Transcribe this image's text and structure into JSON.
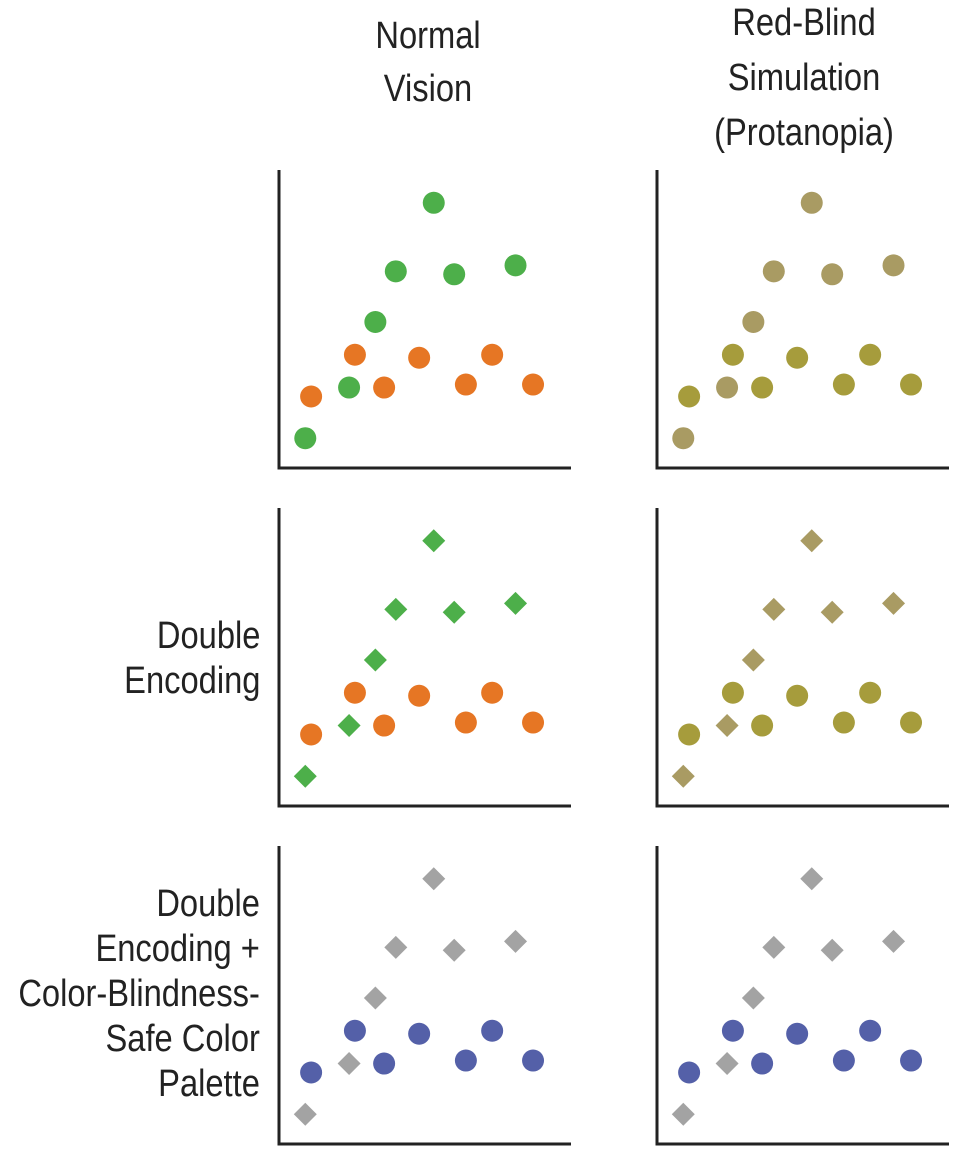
{
  "columns": [
    {
      "title_lines": [
        "Normal",
        "Vision"
      ]
    },
    {
      "title_lines": [
        "Red-Blind",
        "Simulation",
        "(Protanopia)"
      ]
    }
  ],
  "rows": [
    {
      "title_lines": []
    },
    {
      "title_lines": [
        "Double",
        "Encoding"
      ]
    },
    {
      "title_lines": [
        "Double",
        "Encoding +",
        "Color-Blindness-",
        "Safe Color",
        "Palette"
      ]
    }
  ],
  "chart_data": {
    "type": "scatter",
    "note_grid": "3 rows x 2 columns of small multiples; identical point positions in every panel; no tick labels",
    "xlim": [
      0,
      10
    ],
    "ylim": [
      0,
      10
    ],
    "grid": false,
    "series": [
      {
        "group": "A",
        "points": [
          [
            0.9,
            1.0
          ],
          [
            2.4,
            2.7
          ],
          [
            3.3,
            4.9
          ],
          [
            4.0,
            6.6
          ],
          [
            5.3,
            8.9
          ],
          [
            6.0,
            6.5
          ],
          [
            8.1,
            6.8
          ]
        ]
      },
      {
        "group": "B",
        "points": [
          [
            1.1,
            2.4
          ],
          [
            2.6,
            3.8
          ],
          [
            3.6,
            2.7
          ],
          [
            4.8,
            3.7
          ],
          [
            6.4,
            2.8
          ],
          [
            7.3,
            3.8
          ],
          [
            8.7,
            2.8
          ]
        ]
      }
    ],
    "panels": [
      {
        "row": 0,
        "col": 0,
        "A": {
          "shape": "circle",
          "color": "#4daf4a"
        },
        "B": {
          "shape": "circle",
          "color": "#e67624"
        }
      },
      {
        "row": 0,
        "col": 1,
        "A": {
          "shape": "circle",
          "color": "#a99b63"
        },
        "B": {
          "shape": "circle",
          "color": "#a69c3c"
        }
      },
      {
        "row": 1,
        "col": 0,
        "A": {
          "shape": "diamond",
          "color": "#4daf4a"
        },
        "B": {
          "shape": "circle",
          "color": "#e67624"
        }
      },
      {
        "row": 1,
        "col": 1,
        "A": {
          "shape": "diamond",
          "color": "#a99b63"
        },
        "B": {
          "shape": "circle",
          "color": "#a69c3c"
        }
      },
      {
        "row": 2,
        "col": 0,
        "A": {
          "shape": "diamond",
          "color": "#a3a3a3"
        },
        "B": {
          "shape": "circle",
          "color": "#5460a8"
        }
      },
      {
        "row": 2,
        "col": 1,
        "A": {
          "shape": "diamond",
          "color": "#a3a3a3"
        },
        "B": {
          "shape": "circle",
          "color": "#5460a8"
        }
      }
    ]
  },
  "colors": {
    "axis": "#222222",
    "text": "#222222"
  }
}
